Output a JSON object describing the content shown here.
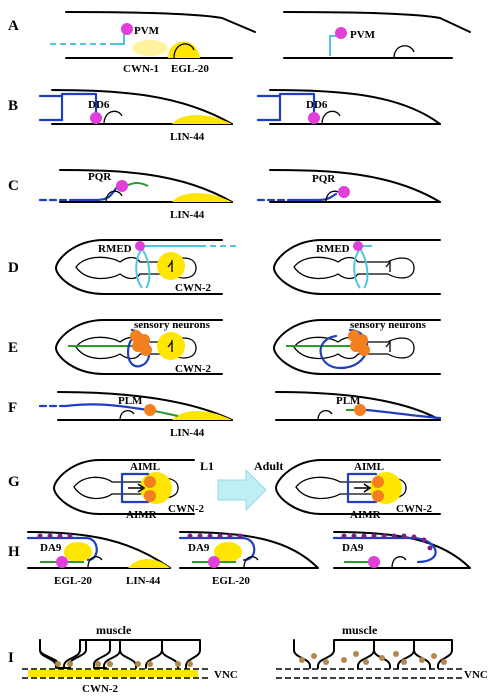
{
  "panels": {
    "A": {
      "letter": "A",
      "left_labels": [
        "PVM",
        "CWN-1",
        "EGL-20"
      ],
      "right_labels": [
        "PVM"
      ]
    },
    "B": {
      "letter": "B",
      "left_labels": [
        "DD6",
        "LIN-44"
      ],
      "right_labels": [
        "DD6"
      ]
    },
    "C": {
      "letter": "C",
      "left_labels": [
        "PQR",
        "LIN-44"
      ],
      "right_labels": [
        "PQR"
      ]
    },
    "D": {
      "letter": "D",
      "left_labels": [
        "RMED",
        "CWN-2"
      ],
      "right_labels": [
        "RMED"
      ]
    },
    "E": {
      "letter": "E",
      "left_labels": [
        "sensory neurons",
        "CWN-2"
      ],
      "right_labels": [
        "sensory neurons"
      ]
    },
    "F": {
      "letter": "F",
      "left_labels": [
        "PLM",
        "LIN-44"
      ],
      "right_labels": [
        "PLM"
      ]
    },
    "G": {
      "letter": "G",
      "left_labels": [
        "AIML",
        "AIMR",
        "CWN-2"
      ],
      "right_labels": [
        "AIML",
        "AIMR",
        "CWN-2"
      ],
      "stage_from": "L1",
      "stage_to": "Adult"
    },
    "H": {
      "letter": "H",
      "labels_1": [
        "DA9",
        "EGL-20",
        "LIN-44"
      ],
      "labels_2": [
        "DA9",
        "EGL-20"
      ],
      "labels_3": [
        "DA9"
      ]
    },
    "I": {
      "letter": "I",
      "left_labels": [
        "muscle",
        "VNC",
        "CWN-2"
      ],
      "right_labels": [
        "muscle",
        "VNC"
      ]
    }
  },
  "colors": {
    "neuron_axon": "#1f3fbf",
    "dendrite": "#4fc6e0",
    "branch": "#2e9a2e",
    "wnt_source": "#ffe600",
    "cell_body": "#e040d8",
    "sensory_cell": "#f37f1e",
    "arrow": "#bfeef5"
  }
}
